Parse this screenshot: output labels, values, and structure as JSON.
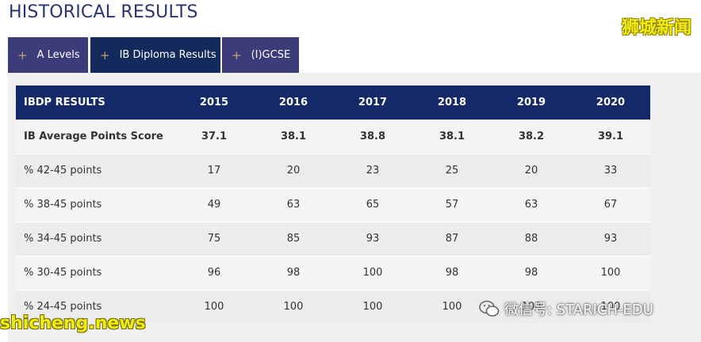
{
  "page": {
    "title": "HISTORICAL RESULTS"
  },
  "tabs": [
    {
      "label": "A Levels",
      "icon": "plus-icon"
    },
    {
      "label": "IB Diploma Results",
      "icon": "plus-icon"
    },
    {
      "label": "(I)GCSE",
      "icon": "plus-icon"
    }
  ],
  "active_tab": "IB Diploma Results",
  "table": {
    "header": [
      "IBDP RESULTS",
      "2015",
      "2016",
      "2017",
      "2018",
      "2019",
      "2020"
    ],
    "rows": [
      {
        "label": "IB Average Points Score",
        "values": [
          "37.1",
          "38.1",
          "38.8",
          "38.1",
          "38.2",
          "39.1"
        ]
      },
      {
        "label": "% 42-45 points",
        "values": [
          "17",
          "20",
          "23",
          "25",
          "20",
          "33"
        ]
      },
      {
        "label": "% 38-45 points",
        "values": [
          "49",
          "63",
          "65",
          "57",
          "63",
          "67"
        ]
      },
      {
        "label": "% 34-45 points",
        "values": [
          "75",
          "85",
          "93",
          "87",
          "88",
          "93"
        ]
      },
      {
        "label": "% 30-45 points",
        "values": [
          "96",
          "98",
          "100",
          "98",
          "98",
          "100"
        ]
      },
      {
        "label": "% 24-45 points",
        "values": [
          "100",
          "100",
          "100",
          "100",
          "100",
          "100"
        ]
      }
    ]
  },
  "watermarks": {
    "top_right": "狮城新闻",
    "bottom_left": "shicheng.news",
    "bottom_right": "微信号: STARICH-EDU"
  },
  "colors": {
    "title": "#2a3470",
    "tab_bg": "#3c3c7a",
    "tab_active_bg": "#142a5c",
    "table_header_bg": "#13296a",
    "plus": "#c9a46a"
  }
}
